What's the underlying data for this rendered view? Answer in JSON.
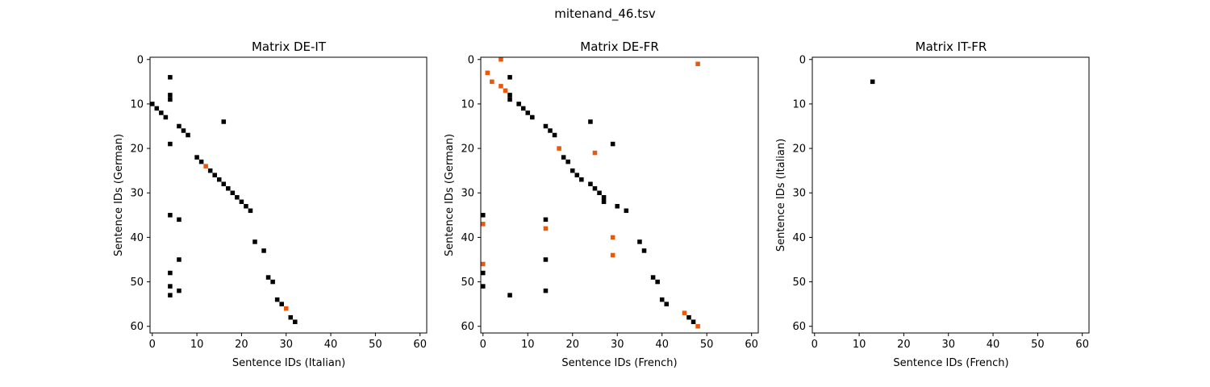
{
  "figure": {
    "title": "mitenand_46.tsv"
  },
  "colors": {
    "black_cell": "#000000",
    "orange_cell": "#e8590c",
    "axes": "#000000",
    "background": "#ffffff"
  },
  "chart_data": [
    {
      "type": "heatmap",
      "title": "Matrix DE-IT",
      "xlabel": "Sentence IDs (Italian)",
      "ylabel": "Sentence IDs (German)",
      "xlim": [
        -0.5,
        61.5
      ],
      "ylim": [
        61.5,
        -0.5
      ],
      "xticks": [
        0,
        10,
        20,
        30,
        40,
        50,
        60
      ],
      "yticks": [
        0,
        10,
        20,
        30,
        40,
        50,
        60
      ],
      "grid": false,
      "black_points": [
        [
          4,
          4
        ],
        [
          4,
          8
        ],
        [
          4,
          9
        ],
        [
          0,
          10
        ],
        [
          1,
          11
        ],
        [
          2,
          12
        ],
        [
          3,
          13
        ],
        [
          16,
          14
        ],
        [
          6,
          15
        ],
        [
          7,
          16
        ],
        [
          8,
          17
        ],
        [
          4,
          19
        ],
        [
          10,
          22
        ],
        [
          11,
          23
        ],
        [
          13,
          25
        ],
        [
          14,
          26
        ],
        [
          15,
          27
        ],
        [
          16,
          28
        ],
        [
          17,
          29
        ],
        [
          18,
          30
        ],
        [
          19,
          31
        ],
        [
          20,
          32
        ],
        [
          21,
          33
        ],
        [
          22,
          34
        ],
        [
          4,
          35
        ],
        [
          6,
          36
        ],
        [
          23,
          41
        ],
        [
          25,
          43
        ],
        [
          6,
          45
        ],
        [
          4,
          48
        ],
        [
          26,
          49
        ],
        [
          27,
          50
        ],
        [
          4,
          51
        ],
        [
          6,
          52
        ],
        [
          4,
          53
        ],
        [
          28,
          54
        ],
        [
          29,
          55
        ],
        [
          31,
          58
        ],
        [
          32,
          59
        ]
      ],
      "orange_points": [
        [
          12,
          24
        ],
        [
          30,
          56
        ]
      ]
    },
    {
      "type": "heatmap",
      "title": "Matrix DE-FR",
      "xlabel": "Sentence IDs (French)",
      "ylabel": "Sentence IDs (German)",
      "xlim": [
        -0.5,
        61.5
      ],
      "ylim": [
        61.5,
        -0.5
      ],
      "xticks": [
        0,
        10,
        20,
        30,
        40,
        50,
        60
      ],
      "yticks": [
        0,
        10,
        20,
        30,
        40,
        50,
        60
      ],
      "grid": false,
      "black_points": [
        [
          6,
          4
        ],
        [
          6,
          8
        ],
        [
          6,
          9
        ],
        [
          8,
          10
        ],
        [
          9,
          11
        ],
        [
          10,
          12
        ],
        [
          11,
          13
        ],
        [
          24,
          14
        ],
        [
          14,
          15
        ],
        [
          15,
          16
        ],
        [
          16,
          17
        ],
        [
          29,
          19
        ],
        [
          18,
          22
        ],
        [
          19,
          23
        ],
        [
          20,
          25
        ],
        [
          21,
          26
        ],
        [
          22,
          27
        ],
        [
          24,
          28
        ],
        [
          25,
          29
        ],
        [
          26,
          30
        ],
        [
          27,
          31
        ],
        [
          27,
          32
        ],
        [
          30,
          33
        ],
        [
          32,
          34
        ],
        [
          0,
          35
        ],
        [
          14,
          36
        ],
        [
          35,
          41
        ],
        [
          36,
          43
        ],
        [
          14,
          45
        ],
        [
          0,
          48
        ],
        [
          38,
          49
        ],
        [
          39,
          50
        ],
        [
          0,
          51
        ],
        [
          14,
          52
        ],
        [
          6,
          53
        ],
        [
          40,
          54
        ],
        [
          41,
          55
        ],
        [
          46,
          58
        ],
        [
          47,
          59
        ]
      ],
      "orange_points": [
        [
          4,
          0
        ],
        [
          48,
          1
        ],
        [
          1,
          3
        ],
        [
          2,
          5
        ],
        [
          4,
          6
        ],
        [
          5,
          7
        ],
        [
          17,
          20
        ],
        [
          25,
          21
        ],
        [
          0,
          37
        ],
        [
          14,
          38
        ],
        [
          29,
          40
        ],
        [
          29,
          44
        ],
        [
          0,
          46
        ],
        [
          45,
          57
        ],
        [
          48,
          60
        ]
      ]
    },
    {
      "type": "heatmap",
      "title": "Matrix IT-FR",
      "xlabel": "Sentence IDs (French)",
      "ylabel": "Sentence IDs (Italian)",
      "xlim": [
        -0.5,
        61.5
      ],
      "ylim": [
        61.5,
        -0.5
      ],
      "xticks": [
        0,
        10,
        20,
        30,
        40,
        50,
        60
      ],
      "yticks": [
        0,
        10,
        20,
        30,
        40,
        50,
        60
      ],
      "grid": false,
      "black_points": [
        [
          13,
          5
        ]
      ],
      "orange_points": []
    }
  ]
}
